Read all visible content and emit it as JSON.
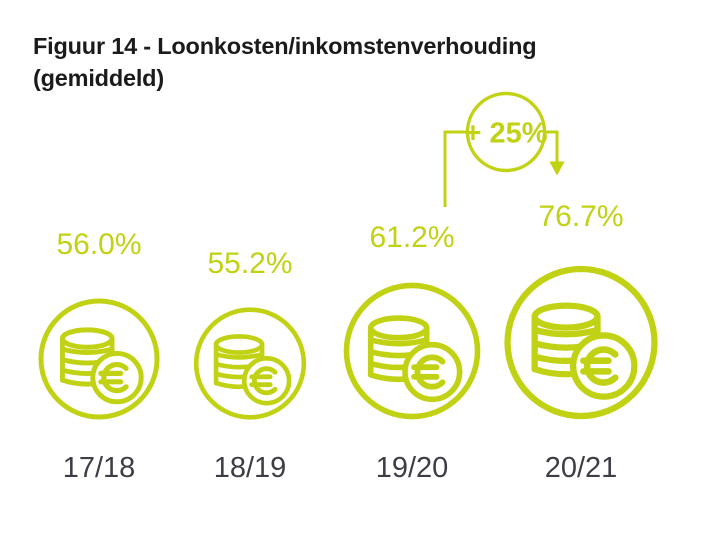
{
  "title": {
    "line1": "Figuur 14 - Loonkosten/inkomstenverhouding",
    "line2": "(gemiddeld)"
  },
  "annotation": {
    "label": "+ 25%",
    "from": "19/20",
    "to": "20/21"
  },
  "colors": {
    "accent": "#c1d214",
    "title_text": "#1b1b1b",
    "axis_text": "#3d3d46"
  },
  "items": [
    {
      "value_label": "56.0%",
      "year": "17/18",
      "value": 56.0
    },
    {
      "value_label": "55.2%",
      "year": "18/19",
      "value": 55.2
    },
    {
      "value_label": "61.2%",
      "year": "19/20",
      "value": 61.2
    },
    {
      "value_label": "76.7%",
      "year": "20/21",
      "value": 76.7
    }
  ],
  "chart_data": {
    "type": "pictogram",
    "title": "Figuur 14 - Loonkosten/inkomstenverhouding (gemiddeld)",
    "categories": [
      "17/18",
      "18/19",
      "19/20",
      "20/21"
    ],
    "values": [
      56.0,
      55.2,
      61.2,
      76.7
    ],
    "value_labels": [
      "56.0%",
      "55.2%",
      "61.2%",
      "76.7%"
    ],
    "unit": "%",
    "icon": "coins-euro",
    "annotations": [
      {
        "text": "+ 25%",
        "from": "19/20",
        "to": "20/21"
      }
    ],
    "layout_hints": {
      "icon_size_encodes_value": true,
      "labels_above_icons": true,
      "categories_below_icons": true
    }
  }
}
